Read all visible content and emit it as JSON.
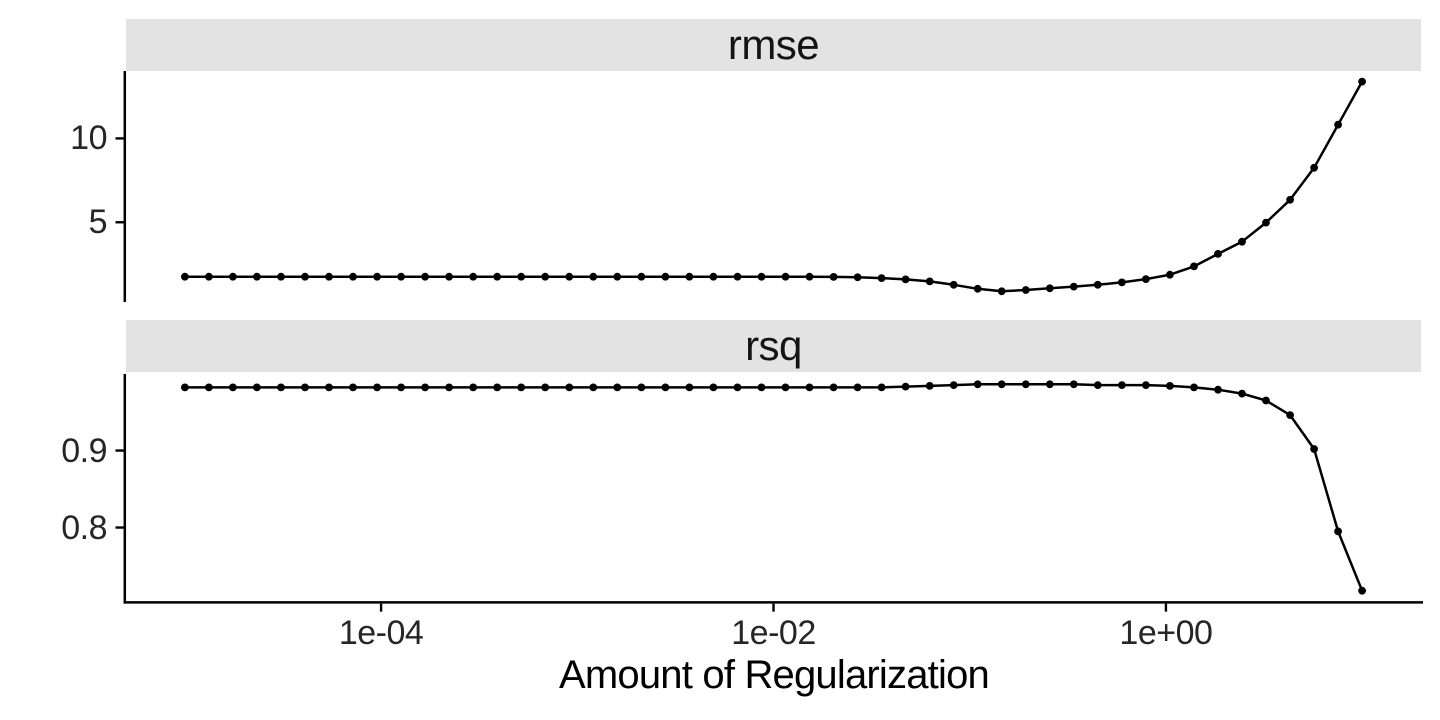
{
  "figure": {
    "background": "#FFFFFF",
    "strip_background": "#E3E3E3",
    "strip_text_color": "#141414",
    "axis_line_color": "#000000",
    "series_color": "#000000",
    "tick_text_color": "#262626",
    "x_axis": {
      "title": "Amount of Regularization",
      "scale": "log10",
      "xlim_log10": [
        -5.3,
        1.3
      ],
      "ticks": [
        {
          "label": "1e-04",
          "value": 0.0001
        },
        {
          "label": "1e-02",
          "value": 0.01
        },
        {
          "label": "1e+00",
          "value": 1.0
        }
      ]
    },
    "panels": [
      {
        "strip_label": "rmse",
        "y_ticks": [
          {
            "label": "10",
            "value": 10
          },
          {
            "label": "5",
            "value": 5
          }
        ]
      },
      {
        "strip_label": "rsq",
        "y_ticks": [
          {
            "label": "0.9",
            "value": 0.9
          },
          {
            "label": "0.8",
            "value": 0.8
          }
        ]
      }
    ]
  },
  "chart_data": [
    {
      "type": "line",
      "title": "rmse",
      "xlabel": "Amount of Regularization",
      "ylabel": "rmse",
      "x_scale": "log10",
      "grid": false,
      "legend": "none",
      "marker": "point",
      "ylim": [
        0.244,
        14.02
      ],
      "x": [
        1e-05,
        1.326e-05,
        1.757e-05,
        2.33e-05,
        3.089e-05,
        4.095e-05,
        5.429e-05,
        7.197e-05,
        9.541e-05,
        0.0001265,
        0.0001677,
        0.0002223,
        0.0002947,
        0.0003907,
        0.000518,
        0.0006866,
        0.0009103,
        0.001207,
        0.0016,
        0.002121,
        0.002812,
        0.003728,
        0.004942,
        0.006551,
        0.008685,
        0.01151,
        0.01526,
        0.02024,
        0.02683,
        0.03557,
        0.04715,
        0.06251,
        0.08286,
        0.1098,
        0.1456,
        0.1931,
        0.256,
        0.3393,
        0.4498,
        0.5964,
        0.7906,
        1.048,
        1.39,
        1.842,
        2.442,
        3.237,
        4.292,
        5.69,
        7.543,
        10
      ],
      "values": [
        1.75,
        1.75,
        1.75,
        1.75,
        1.75,
        1.75,
        1.75,
        1.75,
        1.75,
        1.75,
        1.75,
        1.75,
        1.75,
        1.75,
        1.75,
        1.75,
        1.75,
        1.75,
        1.75,
        1.75,
        1.75,
        1.75,
        1.75,
        1.75,
        1.75,
        1.75,
        1.75,
        1.74,
        1.72,
        1.67,
        1.59,
        1.47,
        1.27,
        1.03,
        0.88,
        0.96,
        1.06,
        1.16,
        1.27,
        1.41,
        1.61,
        1.87,
        2.37,
        3.11,
        3.84,
        4.98,
        6.34,
        8.25,
        10.82,
        13.39
      ]
    },
    {
      "type": "line",
      "title": "rsq",
      "xlabel": "Amount of Regularization",
      "ylabel": "rsq",
      "x_scale": "log10",
      "grid": false,
      "legend": "none",
      "marker": "point",
      "ylim": [
        0.7046,
        0.9994
      ],
      "x": [
        1e-05,
        1.326e-05,
        1.757e-05,
        2.33e-05,
        3.089e-05,
        4.095e-05,
        5.429e-05,
        7.197e-05,
        9.541e-05,
        0.0001265,
        0.0001677,
        0.0002223,
        0.0002947,
        0.0003907,
        0.000518,
        0.0006866,
        0.0009103,
        0.001207,
        0.0016,
        0.002121,
        0.002812,
        0.003728,
        0.004942,
        0.006551,
        0.008685,
        0.01151,
        0.01526,
        0.02024,
        0.02683,
        0.03557,
        0.04715,
        0.06251,
        0.08286,
        0.1098,
        0.1456,
        0.1931,
        0.256,
        0.3393,
        0.4498,
        0.5964,
        0.7906,
        1.048,
        1.39,
        1.842,
        2.442,
        3.237,
        4.292,
        5.69,
        7.543,
        10
      ],
      "values": [
        0.982,
        0.982,
        0.982,
        0.982,
        0.982,
        0.982,
        0.982,
        0.982,
        0.982,
        0.982,
        0.982,
        0.982,
        0.982,
        0.982,
        0.982,
        0.982,
        0.982,
        0.982,
        0.982,
        0.982,
        0.982,
        0.982,
        0.982,
        0.982,
        0.982,
        0.982,
        0.982,
        0.982,
        0.982,
        0.982,
        0.983,
        0.984,
        0.985,
        0.986,
        0.986,
        0.986,
        0.986,
        0.986,
        0.985,
        0.985,
        0.985,
        0.984,
        0.982,
        0.979,
        0.974,
        0.965,
        0.946,
        0.902,
        0.795,
        0.718
      ]
    }
  ]
}
